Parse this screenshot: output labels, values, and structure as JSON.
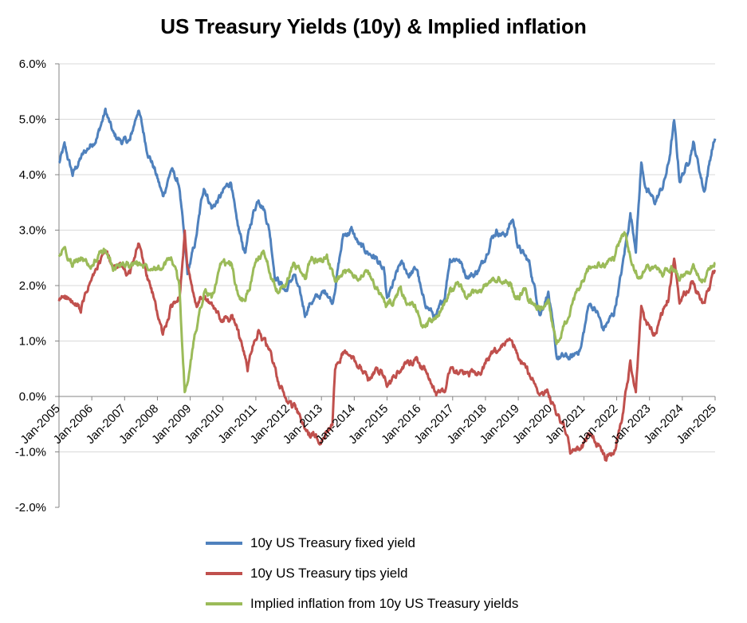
{
  "chart_data": {
    "type": "line",
    "title": "US Treasury Yields (10y) & Implied inflation",
    "xlabel": "",
    "ylabel": "",
    "ylim": [
      -2.0,
      6.0
    ],
    "xlim": [
      "Jan-2005",
      "Jan-2025"
    ],
    "y_ticks": [
      "-2.0%",
      "-1.0%",
      "0.0%",
      "1.0%",
      "2.0%",
      "3.0%",
      "4.0%",
      "5.0%",
      "6.0%"
    ],
    "x_ticks": [
      "Jan-2005",
      "Jan-2006",
      "Jan-2007",
      "Jan-2008",
      "Jan-2009",
      "Jan-2010",
      "Jan-2011",
      "Jan-2012",
      "Jan-2013",
      "Jan-2014",
      "Jan-2015",
      "Jan-2016",
      "Jan-2017",
      "Jan-2018",
      "Jan-2019",
      "Jan-2020",
      "Jan-2021",
      "Jan-2022",
      "Jan-2023",
      "Jan-2024",
      "Jan-2025"
    ],
    "grid": true,
    "legend_position": "bottom",
    "series": [
      {
        "name": "10y US Treasury fixed yield",
        "color": "#4F81BD",
        "points": [
          [
            "2005-01",
            4.2
          ],
          [
            "2005-03",
            4.5
          ],
          [
            "2005-06",
            4.0
          ],
          [
            "2005-09",
            4.3
          ],
          [
            "2005-12",
            4.5
          ],
          [
            "2006-03",
            4.7
          ],
          [
            "2006-06",
            5.15
          ],
          [
            "2006-09",
            4.7
          ],
          [
            "2006-12",
            4.6
          ],
          [
            "2007-03",
            4.6
          ],
          [
            "2007-06",
            5.2
          ],
          [
            "2007-09",
            4.5
          ],
          [
            "2007-12",
            4.1
          ],
          [
            "2008-03",
            3.6
          ],
          [
            "2008-06",
            4.1
          ],
          [
            "2008-09",
            3.8
          ],
          [
            "2008-12",
            2.2
          ],
          [
            "2009-03",
            2.8
          ],
          [
            "2009-06",
            3.8
          ],
          [
            "2009-09",
            3.4
          ],
          [
            "2009-12",
            3.6
          ],
          [
            "2010-04",
            3.9
          ],
          [
            "2010-06",
            3.1
          ],
          [
            "2010-09",
            2.6
          ],
          [
            "2010-12",
            3.3
          ],
          [
            "2011-02",
            3.6
          ],
          [
            "2011-04",
            3.4
          ],
          [
            "2011-06",
            3.0
          ],
          [
            "2011-08",
            2.2
          ],
          [
            "2011-12",
            1.9
          ],
          [
            "2012-03",
            2.2
          ],
          [
            "2012-07",
            1.5
          ],
          [
            "2012-09",
            1.7
          ],
          [
            "2012-12",
            1.8
          ],
          [
            "2013-03",
            1.9
          ],
          [
            "2013-05",
            1.7
          ],
          [
            "2013-09",
            2.9
          ],
          [
            "2013-12",
            3.0
          ],
          [
            "2014-03",
            2.7
          ],
          [
            "2014-06",
            2.6
          ],
          [
            "2014-09",
            2.5
          ],
          [
            "2014-12",
            2.2
          ],
          [
            "2015-01",
            1.7
          ],
          [
            "2015-06",
            2.4
          ],
          [
            "2015-09",
            2.2
          ],
          [
            "2015-12",
            2.3
          ],
          [
            "2016-02",
            1.75
          ],
          [
            "2016-07",
            1.4
          ],
          [
            "2016-10",
            1.8
          ],
          [
            "2016-12",
            2.5
          ],
          [
            "2017-03",
            2.5
          ],
          [
            "2017-06",
            2.2
          ],
          [
            "2017-09",
            2.2
          ],
          [
            "2017-12",
            2.4
          ],
          [
            "2018-03",
            2.85
          ],
          [
            "2018-05",
            3.0
          ],
          [
            "2018-08",
            2.9
          ],
          [
            "2018-11",
            3.2
          ],
          [
            "2019-01",
            2.7
          ],
          [
            "2019-05",
            2.4
          ],
          [
            "2019-09",
            1.5
          ],
          [
            "2019-12",
            1.9
          ],
          [
            "2020-03",
            0.7
          ],
          [
            "2020-06",
            0.7
          ],
          [
            "2020-09",
            0.7
          ],
          [
            "2020-12",
            0.9
          ],
          [
            "2021-03",
            1.7
          ],
          [
            "2021-06",
            1.5
          ],
          [
            "2021-08",
            1.2
          ],
          [
            "2021-12",
            1.5
          ],
          [
            "2022-03",
            2.3
          ],
          [
            "2022-06",
            3.3
          ],
          [
            "2022-08",
            2.7
          ],
          [
            "2022-10",
            4.2
          ],
          [
            "2022-12",
            3.7
          ],
          [
            "2023-03",
            3.5
          ],
          [
            "2023-06",
            3.8
          ],
          [
            "2023-08",
            4.2
          ],
          [
            "2023-10",
            4.95
          ],
          [
            "2023-12",
            3.9
          ],
          [
            "2024-03",
            4.2
          ],
          [
            "2024-05",
            4.6
          ],
          [
            "2024-09",
            3.7
          ],
          [
            "2024-12",
            4.5
          ],
          [
            "2025-01",
            4.65
          ]
        ]
      },
      {
        "name": "10y US Treasury tips yield",
        "color": "#C0504D",
        "points": [
          [
            "2005-01",
            1.7
          ],
          [
            "2005-03",
            1.85
          ],
          [
            "2005-06",
            1.65
          ],
          [
            "2005-09",
            1.55
          ],
          [
            "2005-12",
            2.0
          ],
          [
            "2006-03",
            2.3
          ],
          [
            "2006-06",
            2.6
          ],
          [
            "2006-09",
            2.3
          ],
          [
            "2006-12",
            2.35
          ],
          [
            "2007-03",
            2.2
          ],
          [
            "2007-06",
            2.75
          ],
          [
            "2007-09",
            2.2
          ],
          [
            "2007-12",
            1.7
          ],
          [
            "2008-03",
            1.1
          ],
          [
            "2008-06",
            1.6
          ],
          [
            "2008-09",
            1.8
          ],
          [
            "2008-11",
            3.0
          ],
          [
            "2008-12",
            2.3
          ],
          [
            "2009-03",
            1.6
          ],
          [
            "2009-06",
            1.8
          ],
          [
            "2009-09",
            1.6
          ],
          [
            "2009-12",
            1.4
          ],
          [
            "2010-04",
            1.4
          ],
          [
            "2010-06",
            1.3
          ],
          [
            "2010-10",
            0.5
          ],
          [
            "2010-12",
            1.0
          ],
          [
            "2011-02",
            1.2
          ],
          [
            "2011-06",
            0.8
          ],
          [
            "2011-09",
            0.3
          ],
          [
            "2011-12",
            -0.05
          ],
          [
            "2012-03",
            -0.2
          ],
          [
            "2012-07",
            -0.6
          ],
          [
            "2012-09",
            -0.7
          ],
          [
            "2012-12",
            -0.75
          ],
          [
            "2013-03",
            -0.6
          ],
          [
            "2013-05",
            -0.4
          ],
          [
            "2013-06",
            0.5
          ],
          [
            "2013-09",
            0.8
          ],
          [
            "2013-12",
            0.7
          ],
          [
            "2014-03",
            0.6
          ],
          [
            "2014-06",
            0.3
          ],
          [
            "2014-09",
            0.5
          ],
          [
            "2014-12",
            0.4
          ],
          [
            "2015-01",
            0.1
          ],
          [
            "2015-06",
            0.5
          ],
          [
            "2015-09",
            0.6
          ],
          [
            "2015-12",
            0.7
          ],
          [
            "2016-02",
            0.5
          ],
          [
            "2016-07",
            0.05
          ],
          [
            "2016-10",
            0.1
          ],
          [
            "2016-12",
            0.5
          ],
          [
            "2017-03",
            0.45
          ],
          [
            "2017-06",
            0.4
          ],
          [
            "2017-09",
            0.4
          ],
          [
            "2017-12",
            0.5
          ],
          [
            "2018-03",
            0.75
          ],
          [
            "2018-06",
            0.8
          ],
          [
            "2018-10",
            1.05
          ],
          [
            "2018-12",
            0.9
          ],
          [
            "2019-03",
            0.6
          ],
          [
            "2019-06",
            0.3
          ],
          [
            "2019-09",
            0.1
          ],
          [
            "2019-12",
            0.1
          ],
          [
            "2020-03",
            -0.3
          ],
          [
            "2020-06",
            -0.6
          ],
          [
            "2020-08",
            -1.0
          ],
          [
            "2020-12",
            -1.0
          ],
          [
            "2021-03",
            -0.7
          ],
          [
            "2021-06",
            -0.85
          ],
          [
            "2021-09",
            -1.1
          ],
          [
            "2021-12",
            -1.0
          ],
          [
            "2022-03",
            -0.4
          ],
          [
            "2022-06",
            0.6
          ],
          [
            "2022-08",
            0.1
          ],
          [
            "2022-10",
            1.6
          ],
          [
            "2022-12",
            1.3
          ],
          [
            "2023-03",
            1.15
          ],
          [
            "2023-06",
            1.55
          ],
          [
            "2023-08",
            1.8
          ],
          [
            "2023-10",
            2.45
          ],
          [
            "2023-12",
            1.7
          ],
          [
            "2024-03",
            1.9
          ],
          [
            "2024-05",
            2.1
          ],
          [
            "2024-09",
            1.6
          ],
          [
            "2024-12",
            2.1
          ],
          [
            "2025-01",
            2.25
          ]
        ]
      },
      {
        "name": "Implied inflation from 10y US Treasury yields",
        "color": "#9BBB59",
        "points": [
          [
            "2005-01",
            2.5
          ],
          [
            "2005-03",
            2.7
          ],
          [
            "2005-06",
            2.35
          ],
          [
            "2005-09",
            2.5
          ],
          [
            "2005-12",
            2.35
          ],
          [
            "2006-03",
            2.5
          ],
          [
            "2006-06",
            2.65
          ],
          [
            "2006-09",
            2.3
          ],
          [
            "2006-12",
            2.4
          ],
          [
            "2007-03",
            2.35
          ],
          [
            "2007-06",
            2.4
          ],
          [
            "2007-09",
            2.35
          ],
          [
            "2007-12",
            2.4
          ],
          [
            "2008-03",
            2.3
          ],
          [
            "2008-06",
            2.5
          ],
          [
            "2008-09",
            2.0
          ],
          [
            "2008-11",
            0.1
          ],
          [
            "2008-12",
            0.2
          ],
          [
            "2009-03",
            1.2
          ],
          [
            "2009-06",
            1.9
          ],
          [
            "2009-09",
            1.8
          ],
          [
            "2009-12",
            2.3
          ],
          [
            "2010-04",
            2.4
          ],
          [
            "2010-06",
            1.9
          ],
          [
            "2010-09",
            1.7
          ],
          [
            "2010-12",
            2.2
          ],
          [
            "2011-02",
            2.5
          ],
          [
            "2011-04",
            2.6
          ],
          [
            "2011-06",
            2.3
          ],
          [
            "2011-09",
            1.9
          ],
          [
            "2011-12",
            2.0
          ],
          [
            "2012-03",
            2.4
          ],
          [
            "2012-07",
            2.1
          ],
          [
            "2012-09",
            2.5
          ],
          [
            "2012-12",
            2.45
          ],
          [
            "2013-03",
            2.55
          ],
          [
            "2013-06",
            2.0
          ],
          [
            "2013-09",
            2.2
          ],
          [
            "2013-12",
            2.25
          ],
          [
            "2014-03",
            2.2
          ],
          [
            "2014-06",
            2.25
          ],
          [
            "2014-09",
            2.0
          ],
          [
            "2014-12",
            1.7
          ],
          [
            "2015-01",
            1.6
          ],
          [
            "2015-06",
            1.9
          ],
          [
            "2015-09",
            1.6
          ],
          [
            "2015-12",
            1.6
          ],
          [
            "2016-02",
            1.25
          ],
          [
            "2016-07",
            1.4
          ],
          [
            "2016-10",
            1.7
          ],
          [
            "2016-12",
            1.95
          ],
          [
            "2017-03",
            2.0
          ],
          [
            "2017-06",
            1.75
          ],
          [
            "2017-09",
            1.85
          ],
          [
            "2017-12",
            1.95
          ],
          [
            "2018-03",
            2.1
          ],
          [
            "2018-06",
            2.1
          ],
          [
            "2018-10",
            2.05
          ],
          [
            "2018-12",
            1.75
          ],
          [
            "2019-03",
            1.9
          ],
          [
            "2019-06",
            1.7
          ],
          [
            "2019-09",
            1.6
          ],
          [
            "2019-12",
            1.75
          ],
          [
            "2020-03",
            0.9
          ],
          [
            "2020-06",
            1.3
          ],
          [
            "2020-09",
            1.65
          ],
          [
            "2020-12",
            2.0
          ],
          [
            "2021-03",
            2.3
          ],
          [
            "2021-06",
            2.35
          ],
          [
            "2021-09",
            2.35
          ],
          [
            "2021-12",
            2.5
          ],
          [
            "2022-03",
            2.9
          ],
          [
            "2022-04",
            2.95
          ],
          [
            "2022-06",
            2.5
          ],
          [
            "2022-09",
            2.2
          ],
          [
            "2022-12",
            2.3
          ],
          [
            "2023-03",
            2.3
          ],
          [
            "2023-06",
            2.25
          ],
          [
            "2023-09",
            2.35
          ],
          [
            "2023-12",
            2.2
          ],
          [
            "2024-03",
            2.3
          ],
          [
            "2024-06",
            2.3
          ],
          [
            "2024-09",
            2.1
          ],
          [
            "2024-12",
            2.35
          ],
          [
            "2025-01",
            2.4
          ]
        ]
      }
    ]
  }
}
